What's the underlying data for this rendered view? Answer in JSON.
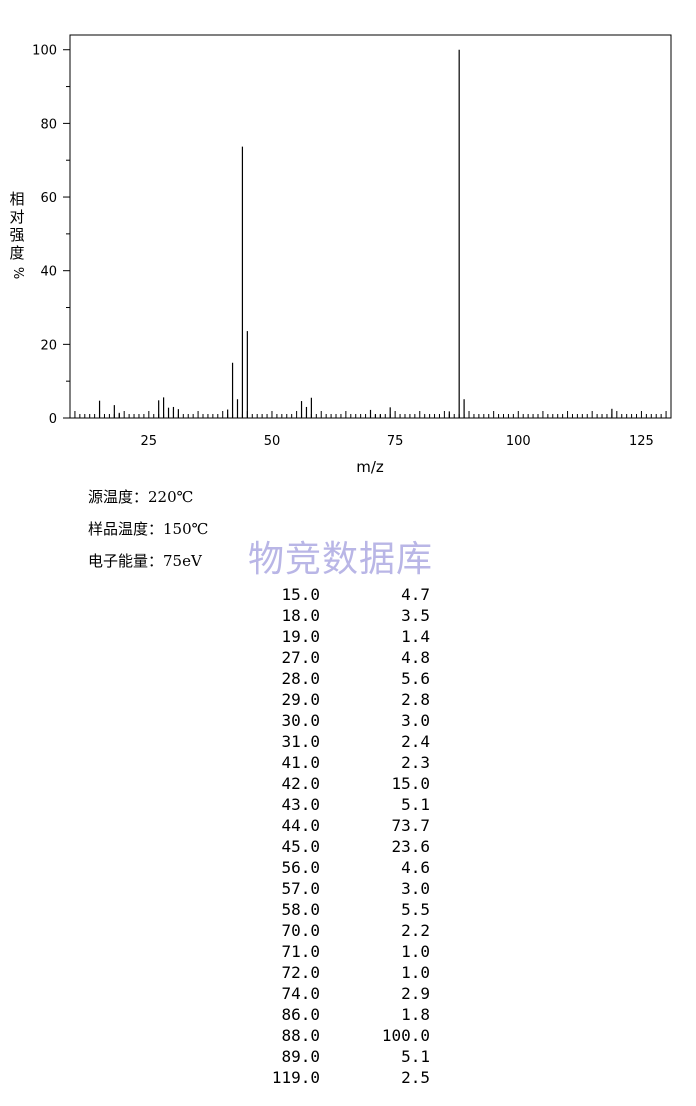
{
  "chart_data": {
    "type": "bar",
    "xlabel": "m/z",
    "ylabel": "相对强度/%",
    "xlim": [
      9,
      131
    ],
    "ylim": [
      0,
      104
    ],
    "xticks": [
      25,
      50,
      75,
      100,
      125
    ],
    "yticks": [
      0,
      20,
      40,
      60,
      80,
      100
    ],
    "x": [
      15,
      18,
      19,
      27,
      28,
      29,
      30,
      31,
      41,
      42,
      43,
      44,
      45,
      56,
      57,
      58,
      70,
      71,
      72,
      74,
      86,
      88,
      89,
      119
    ],
    "values": [
      4.7,
      3.5,
      1.4,
      4.8,
      5.6,
      2.8,
      3.0,
      2.4,
      2.3,
      15.0,
      5.1,
      73.7,
      23.6,
      4.6,
      3.0,
      5.5,
      2.2,
      1.0,
      1.0,
      2.9,
      1.8,
      100.0,
      5.1,
      2.5
    ]
  },
  "ylabel_chars": [
    "相",
    "对",
    "强",
    "度"
  ],
  "ylabel_pct": "%",
  "xlabel_text": "m/z",
  "conditions": {
    "source_temp": "源温度：220℃",
    "sample_temp": "样品温度：150℃",
    "electron_energy": "电子能量：75eV"
  },
  "watermark": "物竞数据库",
  "peak_table": [
    {
      "mz": "15.0",
      "intensity": "4.7"
    },
    {
      "mz": "18.0",
      "intensity": "3.5"
    },
    {
      "mz": "19.0",
      "intensity": "1.4"
    },
    {
      "mz": "27.0",
      "intensity": "4.8"
    },
    {
      "mz": "28.0",
      "intensity": "5.6"
    },
    {
      "mz": "29.0",
      "intensity": "2.8"
    },
    {
      "mz": "30.0",
      "intensity": "3.0"
    },
    {
      "mz": "31.0",
      "intensity": "2.4"
    },
    {
      "mz": "41.0",
      "intensity": "2.3"
    },
    {
      "mz": "42.0",
      "intensity": "15.0"
    },
    {
      "mz": "43.0",
      "intensity": "5.1"
    },
    {
      "mz": "44.0",
      "intensity": "73.7"
    },
    {
      "mz": "45.0",
      "intensity": "23.6"
    },
    {
      "mz": "56.0",
      "intensity": "4.6"
    },
    {
      "mz": "57.0",
      "intensity": "3.0"
    },
    {
      "mz": "58.0",
      "intensity": "5.5"
    },
    {
      "mz": "70.0",
      "intensity": "2.2"
    },
    {
      "mz": "71.0",
      "intensity": "1.0"
    },
    {
      "mz": "72.0",
      "intensity": "1.0"
    },
    {
      "mz": "74.0",
      "intensity": "2.9"
    },
    {
      "mz": "86.0",
      "intensity": "1.8"
    },
    {
      "mz": "88.0",
      "intensity": "100.0"
    },
    {
      "mz": "89.0",
      "intensity": "5.1"
    },
    {
      "mz": "119.0",
      "intensity": "2.5"
    }
  ]
}
